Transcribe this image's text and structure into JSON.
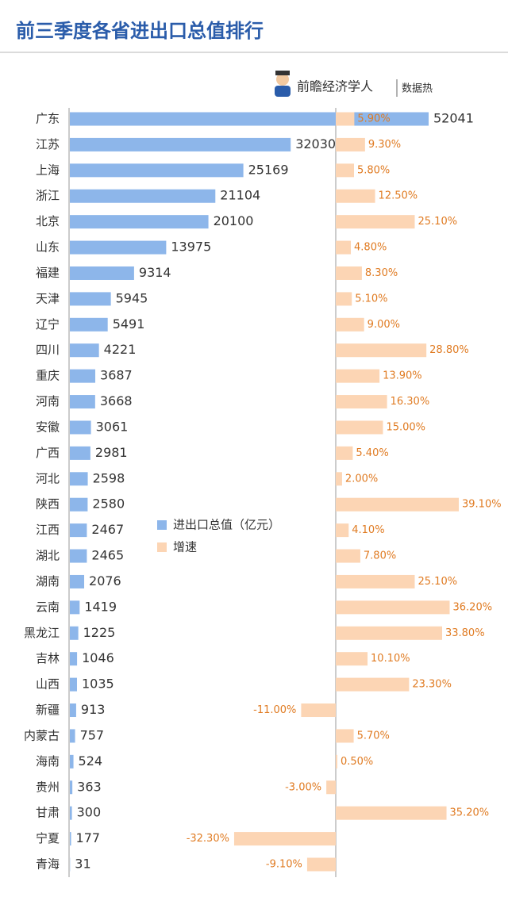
{
  "chart_data": {
    "type": "bar",
    "title": "前三季度各省进出口总值排行",
    "brand": "前瞻经济学人",
    "brand_tag": "数据热",
    "categories": [
      "广东",
      "江苏",
      "上海",
      "浙江",
      "北京",
      "山东",
      "福建",
      "天津",
      "辽宁",
      "四川",
      "重庆",
      "河南",
      "安徽",
      "广西",
      "河北",
      "陕西",
      "江西",
      "湖北",
      "湖南",
      "云南",
      "黑龙江",
      "吉林",
      "山西",
      "新疆",
      "内蒙古",
      "海南",
      "贵州",
      "甘肃",
      "宁夏",
      "青海"
    ],
    "series": [
      {
        "name": "进出口总值（亿元）",
        "color": "#8db6ea",
        "values": [
          52041,
          32030,
          25169,
          21104,
          20100,
          13975,
          9314,
          5945,
          5491,
          4221,
          3687,
          3668,
          3061,
          2981,
          2598,
          2580,
          2467,
          2465,
          2076,
          1419,
          1225,
          1046,
          1035,
          913,
          757,
          524,
          363,
          300,
          177,
          31
        ]
      },
      {
        "name": "增速",
        "color": "#fcd5b4",
        "values": [
          5.9,
          9.3,
          5.8,
          12.5,
          25.1,
          4.8,
          8.3,
          5.1,
          9.0,
          28.8,
          13.9,
          16.3,
          15.0,
          5.4,
          2.0,
          39.1,
          4.1,
          7.8,
          25.1,
          36.2,
          33.8,
          10.1,
          23.3,
          -11.0,
          5.7,
          0.5,
          -3.0,
          35.2,
          -32.3,
          -9.1
        ],
        "value_labels": [
          "5.90%",
          "9.30%",
          "5.80%",
          "12.50%",
          "25.10%",
          "4.80%",
          "8.30%",
          "5.10%",
          "9.00%",
          "28.80%",
          "13.90%",
          "16.30%",
          "15.00%",
          "5.40%",
          "2.00%",
          "39.10%",
          "4.10%",
          "7.80%",
          "25.10%",
          "36.20%",
          "33.80%",
          "10.10%",
          "23.30%",
          "-11.00%",
          "5.70%",
          "0.50%",
          "-3.00%",
          "35.20%",
          "-32.30%",
          "-9.10%"
        ]
      }
    ]
  }
}
